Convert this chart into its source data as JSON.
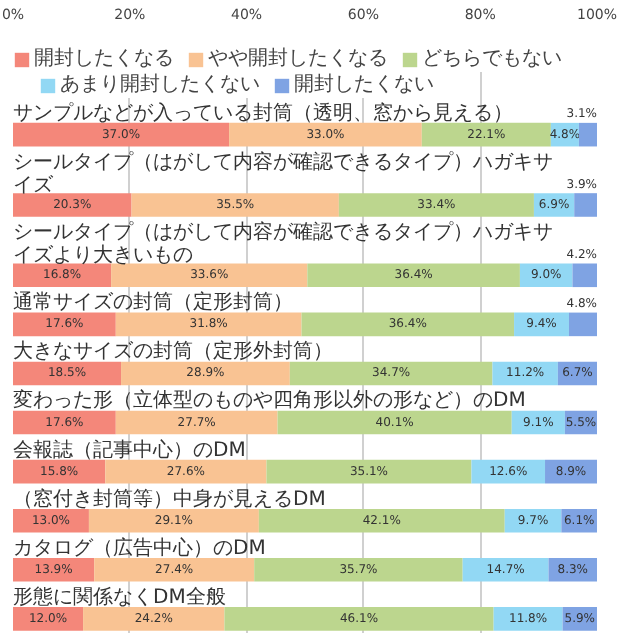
{
  "chart_data": {
    "type": "bar",
    "orientation": "horizontal",
    "stacked": true,
    "categories": [
      "サンプルなどが入っている封筒（透明、窓から見える）",
      "シールタイプ（はがして内容が確認できるタイプ）ハガキサイズ",
      "シールタイプ（はがして内容が確認できるタイプ）ハガキサイズより大きいもの",
      "通常サイズの封筒（定形封筒）",
      "大きなサイズの封筒（定形外封筒）",
      "変わった形（立体型のものや四角形以外の形など）のDM",
      "会報誌（記事中心）のDM",
      "（窓付き封筒等）中身が見えるDM",
      "カタログ（広告中心）のDM",
      "形態に関係なくDM全般"
    ],
    "series": [
      {
        "name": "開封したくなる",
        "color": "#f4877a",
        "values": [
          37.0,
          20.3,
          16.8,
          17.6,
          18.5,
          17.6,
          15.8,
          13.0,
          13.9,
          12.0
        ],
        "value_labels": [
          "37.0%",
          "20.3%",
          "16.8%",
          "17.6%",
          "18.5%",
          "17.6%",
          "15.8%",
          "13.0%",
          "13.9%",
          "12.0%"
        ]
      },
      {
        "name": "やや開封したくなる",
        "color": "#f9c393",
        "values": [
          33.0,
          35.5,
          33.6,
          31.8,
          28.9,
          27.7,
          27.6,
          29.1,
          27.4,
          24.2
        ],
        "value_labels": [
          "33.0%",
          "35.5%",
          "33.6%",
          "31.8%",
          "28.9%",
          "27.7%",
          "27.6%",
          "29.1%",
          "27.4%",
          "24.2%"
        ]
      },
      {
        "name": "どちらでもない",
        "color": "#bcd68e",
        "values": [
          22.1,
          33.4,
          36.4,
          36.4,
          34.7,
          40.1,
          35.1,
          42.1,
          35.7,
          46.1
        ],
        "value_labels": [
          "22.1%",
          "33.4%",
          "36.4%",
          "36.4%",
          "34.7%",
          "40.1%",
          "35.1%",
          "42.1%",
          "35.7%",
          "46.1%"
        ]
      },
      {
        "name": "あまり開封したくない",
        "color": "#92d8f4",
        "values": [
          4.8,
          6.9,
          9.0,
          9.4,
          11.2,
          9.1,
          12.6,
          9.7,
          14.7,
          11.8
        ],
        "value_labels": [
          "4.8%",
          "6.9%",
          "9.0%",
          "9.4%",
          "11.2%",
          "9.1%",
          "12.6%",
          "9.7%",
          "14.7%",
          "11.8%"
        ]
      },
      {
        "name": "開封したくない",
        "color": "#7fa3e3",
        "values": [
          3.1,
          3.9,
          4.2,
          4.8,
          6.7,
          5.5,
          8.9,
          6.1,
          8.3,
          5.9
        ],
        "value_labels": [
          "3.1%",
          "3.9%",
          "4.2%",
          "4.8%",
          "6.7%",
          "5.5%",
          "8.9%",
          "6.1%",
          "8.3%",
          "5.9%"
        ]
      }
    ],
    "xlim": [
      0,
      100
    ],
    "xticks": [
      {
        "value": 0,
        "label": "0%"
      },
      {
        "value": 20,
        "label": "20%"
      },
      {
        "value": 40,
        "label": "40%"
      },
      {
        "value": 60,
        "label": "60%"
      },
      {
        "value": 80,
        "label": "80%"
      },
      {
        "value": 100,
        "label": "100%"
      }
    ],
    "grid": "x",
    "legend": "top"
  }
}
